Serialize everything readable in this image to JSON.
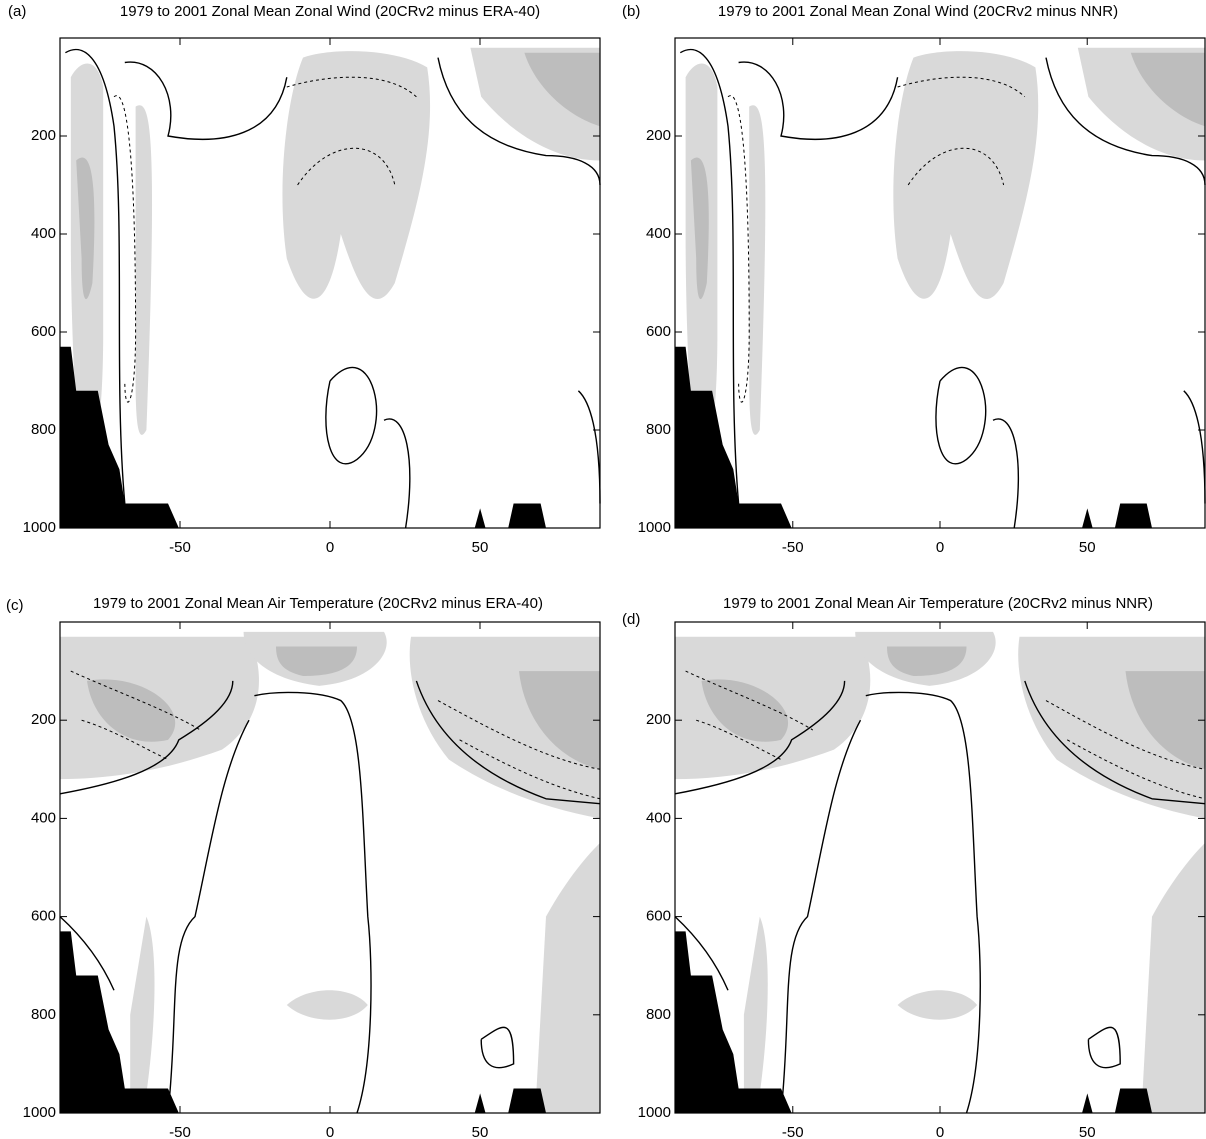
{
  "chart_data": [
    {
      "type": "contour",
      "panel": "(a)",
      "title": "1979 to 2001 Zonal Mean Zonal Wind (20CRv2 minus ERA-40)",
      "xlim": [
        -90,
        90
      ],
      "ylim": [
        1000,
        0
      ],
      "xticks": [
        -50,
        0,
        50
      ],
      "yticks": [
        200,
        400,
        600,
        800,
        1000
      ]
    },
    {
      "type": "contour",
      "panel": "(b)",
      "title": "1979 to 2001 Zonal Mean Zonal Wind (20CRv2 minus NNR)",
      "xlim": [
        -90,
        90
      ],
      "ylim": [
        1000,
        0
      ],
      "xticks": [
        -50,
        0,
        50
      ],
      "yticks": [
        200,
        400,
        600,
        800,
        1000
      ]
    },
    {
      "type": "contour",
      "panel": "(c)",
      "title": "1979 to 2001 Zonal Mean Air Temperature (20CRv2 minus ERA-40)",
      "xlim": [
        -90,
        90
      ],
      "ylim": [
        1000,
        0
      ],
      "xticks": [
        -50,
        0,
        50
      ],
      "yticks": [
        200,
        400,
        600,
        800,
        1000
      ]
    },
    {
      "type": "contour",
      "panel": "(d)",
      "title": "1979 to 2001 Zonal Mean Air Temperature (20CRv2 minus NNR)",
      "xlim": [
        -90,
        90
      ],
      "ylim": [
        1000,
        0
      ],
      "xticks": [
        -50,
        0,
        50
      ],
      "yticks": [
        200,
        400,
        600,
        800,
        1000
      ]
    }
  ]
}
